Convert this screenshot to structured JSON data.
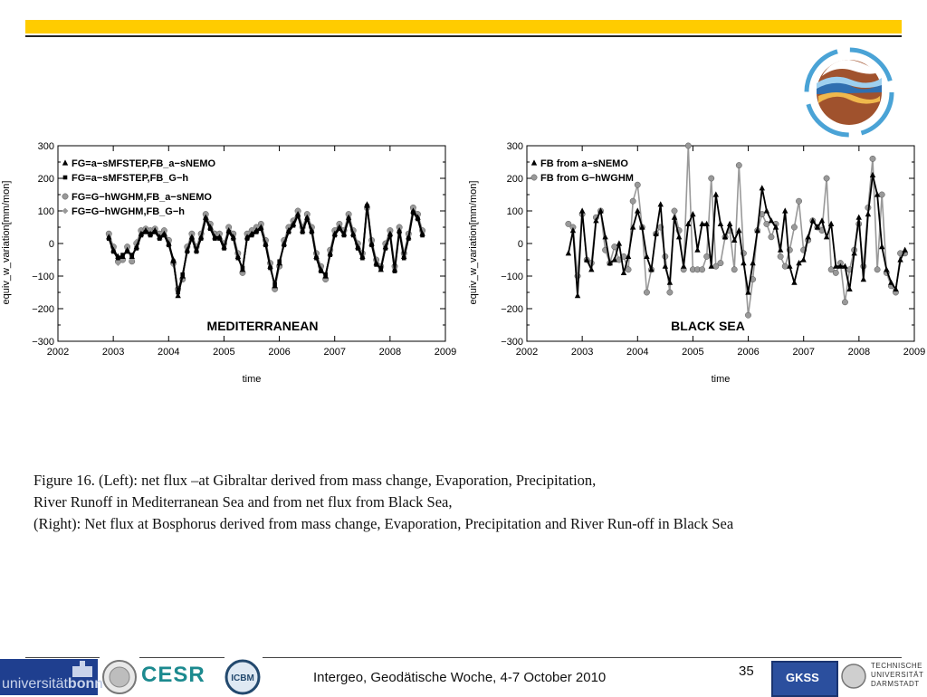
{
  "colors": {
    "accent_bar": "#ffcc00",
    "series_black": "#000000",
    "series_gray": "#999999"
  },
  "caption": {
    "line1": "Figure 16. (Left): net flux –at Gibraltar derived from mass change, Evaporation, Precipitation,",
    "line2": "River Runoff in Mediterranean Sea and from net flux from Black Sea,",
    "line3": "(Right): Net flux at Bosphorus derived from mass change, Evaporation, Precipitation and River Run-off in Black Sea"
  },
  "footer": {
    "text": "Intergeo, Geodätische Woche, 4-7 October 2010",
    "page_number": "35",
    "logos": {
      "bonn_prefix": "universität",
      "bonn_bold": "bonn",
      "cesr": "CESR",
      "icbm": "ICBM",
      "gkss": "GKSS",
      "tud_line1": "TECHNISCHE",
      "tud_line2": "UNIVERSITÄT",
      "tud_line3": "DARMSTADT"
    }
  },
  "chart_data": [
    {
      "type": "line",
      "title": "MEDITERRANEAN",
      "xlabel": "time",
      "ylabel": "equiv_w_variation[mm/mon]",
      "xlim": [
        2002,
        2009
      ],
      "ylim": [
        -300,
        300
      ],
      "xticks": [
        "2002",
        "2003",
        "2004",
        "2005",
        "2006",
        "2007",
        "2008",
        "2009"
      ],
      "yticks": [
        "300",
        "200",
        "100",
        "0",
        "−100",
        "−200",
        "−300"
      ],
      "legend_position": "top-left",
      "x_start": 2002.92,
      "x_step": 0.0833,
      "series": [
        {
          "name": "FG=a−sMFSTEP,FB_a−sNEMO",
          "marker": "triangle",
          "color": "#000000",
          "values": [
            20,
            -20,
            -40,
            -40,
            -20,
            -40,
            -10,
            30,
            40,
            30,
            40,
            20,
            30,
            0,
            -50,
            -160,
            -100,
            -20,
            20,
            -20,
            20,
            80,
            50,
            20,
            20,
            -10,
            40,
            20,
            -40,
            -80,
            20,
            30,
            40,
            50,
            0,
            -70,
            -130,
            -60,
            0,
            40,
            60,
            90,
            40,
            80,
            40,
            -40,
            -80,
            -100,
            -30,
            30,
            50,
            30,
            80,
            30,
            -10,
            -40,
            120,
            0,
            -60,
            -80,
            -10,
            30,
            -80,
            40,
            -40,
            20,
            100,
            80,
            30
          ]
        },
        {
          "name": "FG=a−sMFSTEP,FB_G−h",
          "marker": "square",
          "color": "#000000",
          "values": [
            15,
            -25,
            -45,
            -35,
            -25,
            -35,
            -15,
            25,
            35,
            25,
            35,
            15,
            25,
            -5,
            -55,
            -150,
            -95,
            -25,
            15,
            -25,
            15,
            75,
            45,
            15,
            15,
            -15,
            35,
            15,
            -45,
            -75,
            15,
            25,
            35,
            45,
            -5,
            -75,
            -125,
            -55,
            -5,
            35,
            55,
            85,
            35,
            75,
            35,
            -45,
            -85,
            -95,
            -35,
            25,
            45,
            25,
            75,
            25,
            -15,
            -45,
            115,
            -5,
            -65,
            -75,
            -15,
            25,
            -85,
            35,
            -45,
            15,
            95,
            75,
            25
          ]
        },
        {
          "name": "FG=G−hWGHM,FB_a−sNEMO",
          "marker": "circle",
          "color": "#999999",
          "values": [
            30,
            -10,
            -55,
            -50,
            -10,
            -55,
            0,
            40,
            45,
            40,
            45,
            30,
            40,
            10,
            -60,
            -140,
            -110,
            -10,
            30,
            -10,
            30,
            90,
            60,
            30,
            30,
            0,
            50,
            30,
            -30,
            -90,
            30,
            40,
            50,
            60,
            10,
            -60,
            -140,
            -70,
            10,
            50,
            70,
            100,
            50,
            90,
            50,
            -30,
            -70,
            -110,
            -20,
            40,
            60,
            40,
            90,
            40,
            0,
            -30,
            110,
            10,
            -50,
            -70,
            0,
            40,
            -70,
            50,
            -30,
            30,
            110,
            90,
            40
          ]
        },
        {
          "name": "FG=G−hWGHM,FB_G−h",
          "marker": "diamond",
          "color": "#999999",
          "values": [
            25,
            -15,
            -60,
            -45,
            -15,
            -50,
            5,
            35,
            40,
            35,
            40,
            25,
            35,
            5,
            -65,
            -145,
            -105,
            -15,
            25,
            -15,
            25,
            85,
            55,
            25,
            25,
            -5,
            45,
            25,
            -35,
            -85,
            25,
            35,
            45,
            55,
            5,
            -65,
            -135,
            -65,
            5,
            45,
            65,
            95,
            45,
            85,
            45,
            -35,
            -75,
            -105,
            -25,
            35,
            55,
            35,
            85,
            35,
            -5,
            -35,
            105,
            5,
            -55,
            -75,
            -5,
            35,
            -75,
            45,
            -35,
            25,
            105,
            85,
            35
          ]
        }
      ]
    },
    {
      "type": "line",
      "title": "BLACK SEA",
      "xlabel": "time",
      "ylabel": "equiv_w_variation[mm/mon]",
      "xlim": [
        2002,
        2009
      ],
      "ylim": [
        -300,
        300
      ],
      "xticks": [
        "2002",
        "2003",
        "2004",
        "2005",
        "2006",
        "2007",
        "2008",
        "2009"
      ],
      "yticks": [
        "300",
        "200",
        "100",
        "0",
        "−100",
        "−200",
        "−300"
      ],
      "legend_position": "top-left",
      "x_start": 2002.75,
      "x_step": 0.0833,
      "series": [
        {
          "name": "FB from a−sNEMO",
          "marker": "triangle",
          "color": "#000000",
          "values": [
            -30,
            40,
            -160,
            100,
            -50,
            -80,
            70,
            100,
            20,
            -60,
            -50,
            0,
            -90,
            -40,
            50,
            100,
            50,
            -40,
            -80,
            30,
            120,
            -70,
            -120,
            80,
            20,
            -70,
            60,
            90,
            -20,
            60,
            60,
            -70,
            150,
            60,
            20,
            60,
            10,
            40,
            -60,
            -150,
            -60,
            40,
            170,
            100,
            70,
            50,
            -20,
            100,
            -70,
            -120,
            -60,
            -50,
            20,
            70,
            50,
            70,
            20,
            60,
            -70,
            -70,
            -70,
            -140,
            -30,
            80,
            -110,
            90,
            210,
            150,
            -10,
            -80,
            -120,
            -140,
            -50,
            -20
          ]
        },
        {
          "name": "FB from G−hWGHM",
          "marker": "circle",
          "color": "#999999",
          "values": [
            60,
            50,
            -100,
            90,
            -50,
            -60,
            80,
            100,
            -20,
            -60,
            -10,
            -50,
            -40,
            -80,
            130,
            180,
            50,
            -150,
            -80,
            30,
            50,
            -40,
            -150,
            100,
            40,
            -80,
            300,
            -80,
            -80,
            -80,
            -40,
            200,
            -70,
            -60,
            20,
            40,
            -80,
            240,
            -30,
            -220,
            -110,
            40,
            90,
            60,
            20,
            60,
            -40,
            -70,
            -20,
            50,
            130,
            -20,
            10,
            70,
            50,
            40,
            200,
            -80,
            -90,
            -60,
            -180,
            -80,
            -20,
            60,
            -70,
            110,
            260,
            -80,
            150,
            -90,
            -130,
            -150,
            -30,
            -30
          ]
        }
      ]
    }
  ]
}
